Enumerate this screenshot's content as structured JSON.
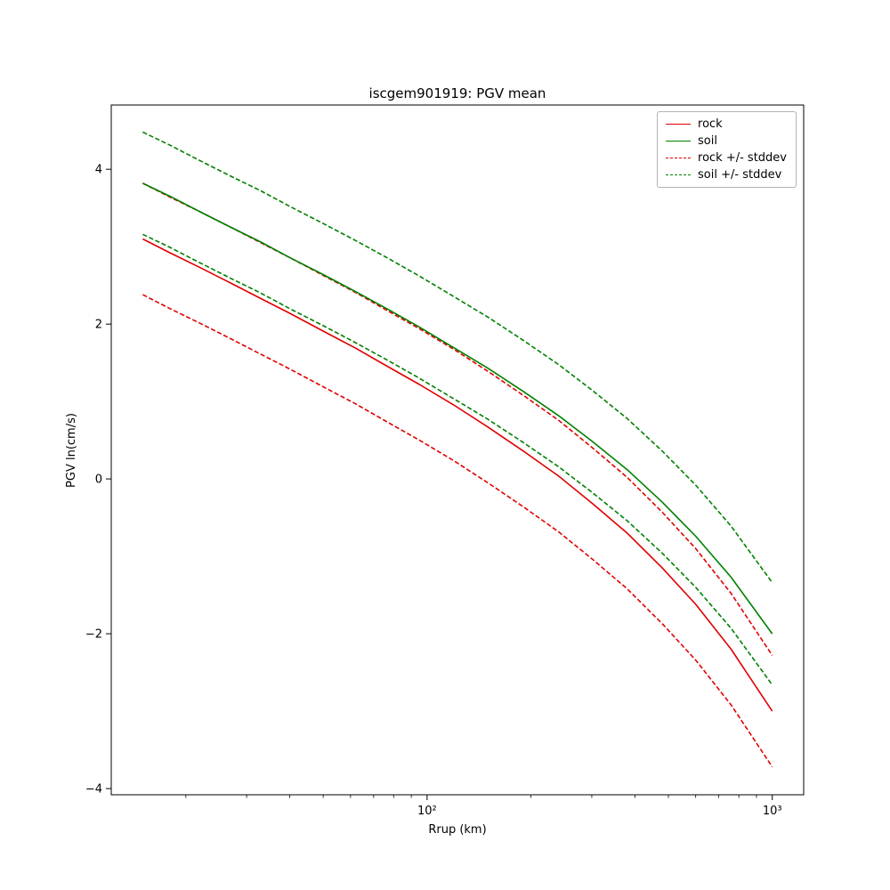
{
  "figure": {
    "background": "#ffffff"
  },
  "chart_data": {
    "type": "line",
    "title": "iscgem901919: PGV mean",
    "xlabel": "Rrup (km)",
    "ylabel": "PGV ln(cm/s)",
    "x_scale": "log",
    "grid": false,
    "xlim": [
      12.16,
      1233
    ],
    "ylim": [
      -4.08,
      4.83
    ],
    "x_major_ticks": [
      {
        "value": 100,
        "label": "10²"
      },
      {
        "value": 1000,
        "label": "10³"
      }
    ],
    "x_minor_ticks": [
      20,
      30,
      40,
      50,
      60,
      70,
      80,
      90,
      200,
      300,
      400,
      500,
      600,
      700,
      800,
      900
    ],
    "y_ticks": [
      {
        "value": -4,
        "label": "−4"
      },
      {
        "value": -2,
        "label": "−2"
      },
      {
        "value": 0,
        "label": "0"
      },
      {
        "value": 2,
        "label": "2"
      },
      {
        "value": 4,
        "label": "4"
      }
    ],
    "x": [
      15,
      18,
      22,
      27,
      33,
      40,
      50,
      62,
      77,
      95,
      120,
      150,
      190,
      240,
      300,
      380,
      480,
      600,
      760,
      1000
    ],
    "series": [
      {
        "name": "rock",
        "color": "#e00000",
        "stddev": 0.72,
        "mean": [
          3.1,
          2.92,
          2.73,
          2.53,
          2.33,
          2.14,
          1.91,
          1.69,
          1.45,
          1.22,
          0.95,
          0.67,
          0.36,
          0.04,
          -0.31,
          -0.7,
          -1.15,
          -1.62,
          -2.2,
          -3.0
        ]
      },
      {
        "name": "soil",
        "color": "#008000",
        "stddev": 0.66,
        "mean": [
          3.82,
          3.65,
          3.45,
          3.25,
          3.06,
          2.86,
          2.64,
          2.42,
          2.19,
          1.96,
          1.69,
          1.43,
          1.13,
          0.82,
          0.49,
          0.12,
          -0.3,
          -0.74,
          -1.27,
          -2.0
        ]
      }
    ],
    "legend": {
      "position": "upper right",
      "entries": [
        {
          "label": "rock",
          "color": "#e00000",
          "dashed": false
        },
        {
          "label": "soil",
          "color": "#008000",
          "dashed": false
        },
        {
          "label": "rock +/- stddev",
          "color": "#e00000",
          "dashed": true
        },
        {
          "label": "soil +/- stddev",
          "color": "#008000",
          "dashed": true
        }
      ]
    }
  }
}
